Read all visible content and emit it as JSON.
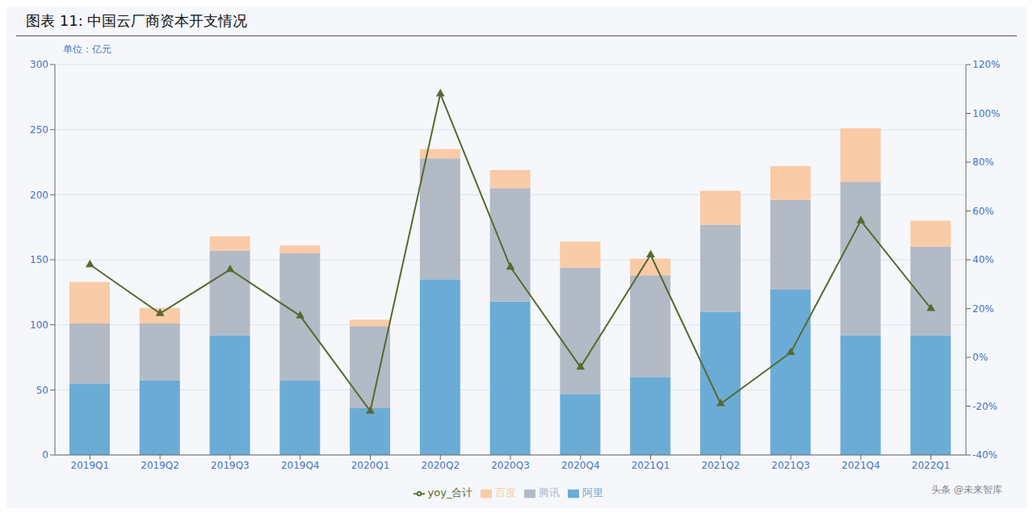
{
  "chart_data": {
    "type": "bar",
    "title": "图表 11:  中国云厂商资本开支情况",
    "ylabel": "单位：亿元",
    "annotations": [
      "头条 @未来智库"
    ],
    "categories": [
      "2019Q1",
      "2019Q2",
      "2019Q3",
      "2019Q4",
      "2020Q1",
      "2020Q2",
      "2020Q3",
      "2020Q4",
      "2021Q1",
      "2021Q2",
      "2021Q3",
      "2021Q4",
      "2022Q1"
    ],
    "stacked": true,
    "grid": true,
    "legend": "bottom",
    "ylim": [
      0,
      300
    ],
    "yticks": [
      0,
      50,
      100,
      150,
      200,
      250,
      300
    ],
    "y2lim": [
      -0.4,
      1.2
    ],
    "y2ticks": [
      {
        "value": -0.4,
        "label": "-40%"
      },
      {
        "value": -0.2,
        "label": "-20%"
      },
      {
        "value": 0.0,
        "label": "0%"
      },
      {
        "value": 0.2,
        "label": "20%"
      },
      {
        "value": 0.4,
        "label": "40%"
      },
      {
        "value": 0.6,
        "label": "60%"
      },
      {
        "value": 0.8,
        "label": "80%"
      },
      {
        "value": 1.0,
        "label": "100%"
      },
      {
        "value": 1.2,
        "label": "120%"
      }
    ],
    "series": [
      {
        "name": "阿里",
        "color": "#6bacd6",
        "values": [
          55,
          57,
          92,
          57,
          36,
          135,
          118,
          47,
          60,
          110,
          127,
          92,
          92
        ]
      },
      {
        "name": "腾讯",
        "color": "#b2bac6",
        "values": [
          46,
          44,
          65,
          98,
          63,
          93,
          87,
          97,
          78,
          67,
          69,
          118,
          68
        ]
      },
      {
        "name": "百度",
        "color": "#f9cba7",
        "values": [
          32,
          12,
          11,
          6,
          5,
          7,
          14,
          20,
          13,
          26,
          26,
          41,
          20
        ]
      },
      {
        "name": "yoy_合计",
        "type": "line",
        "axis": "y2",
        "color": "#556b2f",
        "marker": "triangle",
        "values": [
          0.38,
          0.18,
          0.36,
          0.17,
          -0.22,
          1.08,
          0.37,
          -0.04,
          0.42,
          -0.19,
          0.02,
          0.56,
          0.2
        ]
      }
    ]
  }
}
